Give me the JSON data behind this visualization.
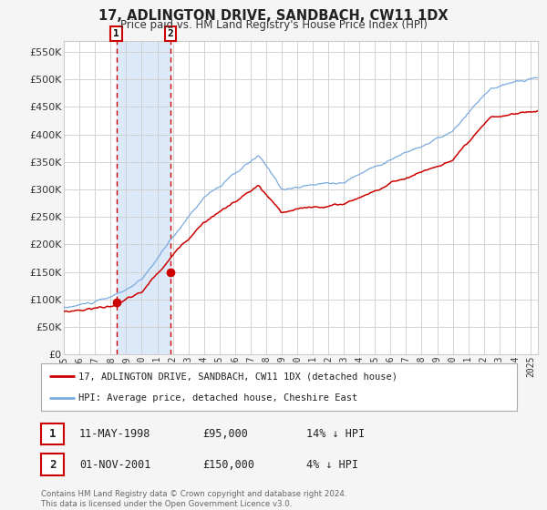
{
  "title": "17, ADLINGTON DRIVE, SANDBACH, CW11 1DX",
  "subtitle": "Price paid vs. HM Land Registry's House Price Index (HPI)",
  "legend_line1": "17, ADLINGTON DRIVE, SANDBACH, CW11 1DX (detached house)",
  "legend_line2": "HPI: Average price, detached house, Cheshire East",
  "transaction1_date": "11-MAY-1998",
  "transaction1_price": 95000,
  "transaction1_pct": "14% ↓ HPI",
  "transaction2_date": "01-NOV-2001",
  "transaction2_price": 150000,
  "transaction2_pct": "4% ↓ HPI",
  "footer": "Contains HM Land Registry data © Crown copyright and database right 2024.\nThis data is licensed under the Open Government Licence v3.0.",
  "hpi_color": "#7aabe0",
  "price_color": "#cc0000",
  "background_color": "#f5f5f5",
  "plot_bg": "#ffffff",
  "grid_color": "#cccccc",
  "vline_color": "#cc0000",
  "shade_color": "#dce9f8",
  "ylim": [
    0,
    570000
  ],
  "yticks": [
    0,
    50000,
    100000,
    150000,
    200000,
    250000,
    300000,
    350000,
    400000,
    450000,
    500000,
    550000
  ],
  "start_year": 1995.0,
  "end_year": 2025.5,
  "transaction1_x": 1998.36,
  "transaction2_x": 2001.84,
  "marker_size": 7
}
